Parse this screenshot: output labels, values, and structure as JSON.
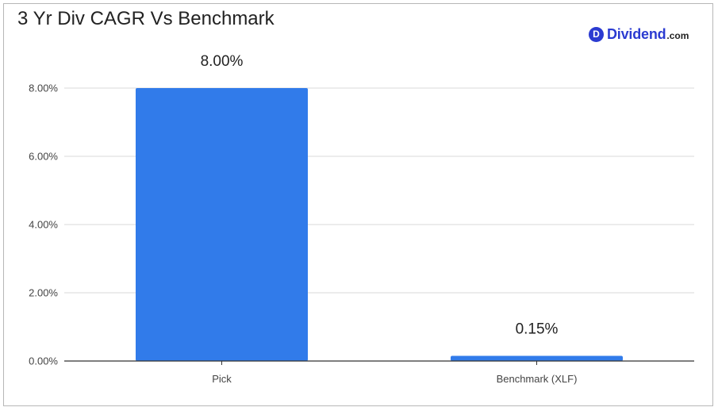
{
  "chart_data": {
    "type": "bar",
    "title": "3 Yr Div CAGR Vs Benchmark",
    "categories": [
      "Pick",
      "Benchmark (XLF)"
    ],
    "values": [
      8.0,
      0.15
    ],
    "data_labels": [
      "8.00%",
      "0.15%"
    ],
    "yticks": [
      0,
      2,
      4,
      6,
      8
    ],
    "ytick_labels": [
      "0.00%",
      "2.00%",
      "4.00%",
      "6.00%",
      "8.00%"
    ],
    "ylim": [
      0,
      8
    ],
    "xlabel": "",
    "ylabel": "",
    "grid": true,
    "bar_color": "#317bea"
  },
  "brand": {
    "mark": "D",
    "name": "Dividend",
    "tld": ".com",
    "color": "#2b3bd1"
  }
}
